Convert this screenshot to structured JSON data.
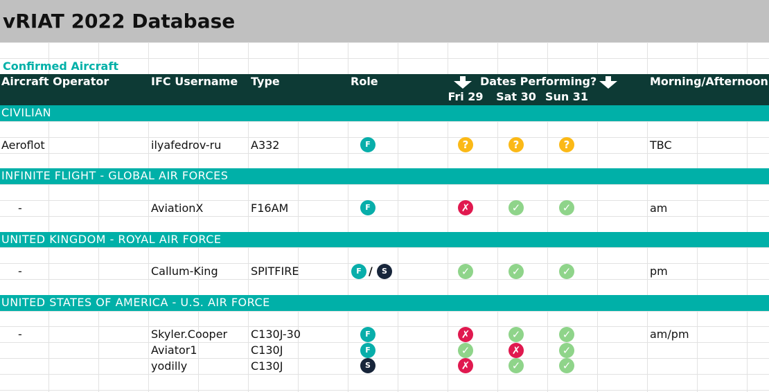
{
  "title": "vRIAT 2022 Database",
  "section": "Confirmed Aircraft",
  "columns": [
    "Aircraft Operator",
    "IFC Username",
    "Type",
    "Role",
    "Dates Performing?",
    "Morning/Afternoon"
  ],
  "dates": [
    "Fri 29",
    "Sat 30",
    "Sun 31"
  ],
  "role_separator": "/",
  "groups": [
    {
      "name": "CIVILIAN",
      "rows": [
        {
          "operator": "Aeroflot",
          "username": "ilyafedrov-ru",
          "type": "A332",
          "role": [
            "F"
          ],
          "dates": [
            "?",
            "?",
            "?"
          ],
          "time": "TBC"
        }
      ]
    },
    {
      "name": "INFINITE FLIGHT - GLOBAL AIR FORCES",
      "rows": [
        {
          "operator": "-",
          "username": "AviationX",
          "type": "F16AM",
          "role": [
            "F"
          ],
          "dates": [
            "✗",
            "✓",
            "✓"
          ],
          "time": "am"
        }
      ]
    },
    {
      "name": "UNITED KINGDOM - ROYAL AIR FORCE",
      "rows": [
        {
          "operator": "-",
          "username": "Callum-King",
          "type": "SPITFIRE",
          "role": [
            "F",
            "S"
          ],
          "dates": [
            "✓",
            "✓",
            "✓"
          ],
          "time": "pm"
        }
      ]
    },
    {
      "name": "UNITED STATES OF AMERICA - U.S. AIR FORCE",
      "rows": [
        {
          "operator": "-",
          "username": "Skyler.Cooper",
          "type": "C130J-30",
          "role": [
            "F"
          ],
          "dates": [
            "✗",
            "✓",
            "✓"
          ],
          "time": "am/pm"
        },
        {
          "username": "Aviator1",
          "type": "C130J",
          "role": [
            "F"
          ],
          "dates": [
            "✓",
            "✗",
            "✓"
          ]
        },
        {
          "username": "yodilly",
          "type": "C130J",
          "role": [
            "S"
          ],
          "dates": [
            "✗",
            "✓",
            "✓"
          ]
        }
      ]
    }
  ]
}
